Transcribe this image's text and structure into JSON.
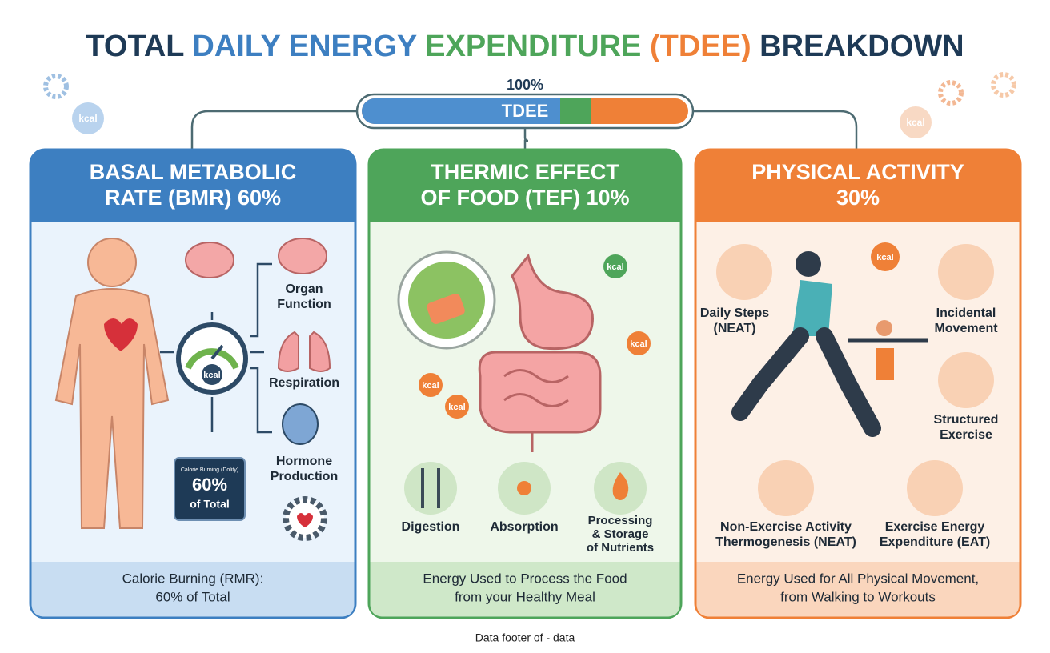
{
  "title": {
    "parts": [
      {
        "text": "TOTAL",
        "color": "#1e3a56"
      },
      {
        "text": "DAILY ENERGY",
        "color": "#3d7fc1"
      },
      {
        "text": "EXPENDITURE",
        "color": "#4ea55a"
      },
      {
        "text": "(TDEE)",
        "color": "#ef8037"
      },
      {
        "text": "BREAKDOWN",
        "color": "#1e3a56"
      }
    ]
  },
  "tdee": {
    "percent": "100%",
    "label": "TDEE"
  },
  "icon_text": "kcal",
  "panels": [
    {
      "color": "#3d7fc1",
      "tint": "#eaf3fc",
      "footer_tint": "#c8ddf2",
      "heading": [
        "BASAL METABOLIC",
        "RATE (BMR) 60%"
      ],
      "labels": [
        [
          "Organ",
          "Function"
        ],
        [
          "Respiration"
        ],
        [
          "Hormone",
          "Production"
        ]
      ],
      "badge": [
        "Calorie Burning (Dolity)",
        "60%",
        "of Total"
      ],
      "footer": [
        "Calorie Burning (RMR):",
        "60% of Total"
      ]
    },
    {
      "color": "#4ea55a",
      "tint": "#eef7ea",
      "footer_tint": "#cfe8c9",
      "heading": [
        "THERMIC EFFECT",
        "OF FOOD (TEF) 10%"
      ],
      "labels": [
        [
          "Digestion"
        ],
        [
          "Absorption"
        ],
        [
          "Processing",
          "& Storage",
          "of Nutrients"
        ]
      ],
      "footer": [
        "Energy Used to Process the Food",
        "from your Healthy Meal"
      ]
    },
    {
      "color": "#ef8037",
      "tint": "#fdf0e6",
      "footer_tint": "#fad6bd",
      "heading": [
        "PHYSICAL ACTIVITY",
        "30%"
      ],
      "labels": [
        [
          "Daily Steps",
          "(NEAT)"
        ],
        [
          "Incidental",
          "Movement"
        ],
        [
          "Structured",
          "Exercise"
        ],
        [
          "Non-Exercise Activity",
          "Thermogenesis (NEAT)"
        ],
        [
          "Exercise Energy",
          "Expenditure (EAT)"
        ]
      ],
      "footer": [
        "Energy Used for All Physical Movement,",
        "from Walking to Workouts"
      ]
    }
  ],
  "source": "Data footer of - data"
}
